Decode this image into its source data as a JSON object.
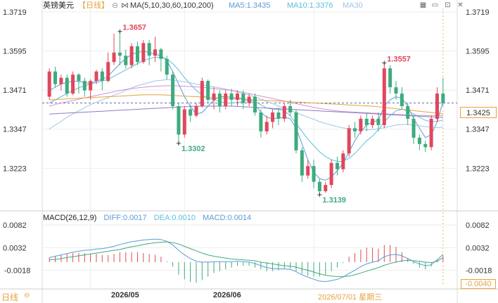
{
  "header": {
    "symbol": "英镑美元",
    "period": "【日线】",
    "ma_title": "MA(5,10,30,60,100,200)",
    "ma5": "MA5:1.3435",
    "ma10": "MA10:1.3376",
    "ma30": "MA30"
  },
  "macd_header": {
    "title": "MACD(26,12,9)",
    "diff": "DIFF:0.0017",
    "dea": "DEA:0.0010",
    "macd": "MACD:0.0014"
  },
  "footer": {
    "period_label": "日线",
    "date1": "2026/05",
    "date2": "2026/06",
    "cursor_date": "2026/07/01 星期三"
  },
  "price_tag": "1.3425",
  "macd_tag": "-0.0040",
  "colors": {
    "up": "#e0475b",
    "down": "#3dab7e",
    "accent": "#e6a23c",
    "ma5": "#5b9bd5",
    "ma10": "#5bc0de",
    "ma30": "#9fc5e8",
    "ma60": "#d68fd6",
    "ma100": "#e6a23c",
    "ma200": "#8e7cc3"
  },
  "chart_data": [
    {
      "type": "candlestick",
      "title": "英镑美元",
      "y_ticks": [
        1.3719,
        1.3595,
        1.3471,
        1.3347,
        1.3223
      ],
      "ylim": [
        1.311,
        1.373
      ],
      "x_tick_labels": [
        "2026/05",
        "2026/06"
      ],
      "annotations": [
        {
          "label": "1.3657",
          "type": "high"
        },
        {
          "label": "1.3302",
          "type": "low"
        },
        {
          "label": "1.3557",
          "type": "high"
        },
        {
          "label": "1.3139",
          "type": "low"
        }
      ],
      "candles": [
        [
          1.345,
          1.353,
          1.354,
          1.344
        ],
        [
          1.353,
          1.349,
          1.3545,
          1.348
        ],
        [
          1.349,
          1.351,
          1.352,
          1.347
        ],
        [
          1.351,
          1.346,
          1.352,
          1.345
        ],
        [
          1.346,
          1.352,
          1.353,
          1.3455
        ],
        [
          1.352,
          1.35,
          1.3525,
          1.346
        ],
        [
          1.35,
          1.347,
          1.351,
          1.345
        ],
        [
          1.347,
          1.35,
          1.3505,
          1.344
        ],
        [
          1.35,
          1.353,
          1.3535,
          1.349
        ],
        [
          1.353,
          1.35,
          1.354,
          1.347
        ],
        [
          1.35,
          1.356,
          1.359,
          1.3495
        ],
        [
          1.356,
          1.359,
          1.365,
          1.355
        ],
        [
          1.359,
          1.358,
          1.3657,
          1.355
        ],
        [
          1.358,
          1.355,
          1.36,
          1.354
        ],
        [
          1.355,
          1.361,
          1.362,
          1.354
        ],
        [
          1.361,
          1.356,
          1.3625,
          1.355
        ],
        [
          1.356,
          1.362,
          1.363,
          1.3555
        ],
        [
          1.362,
          1.358,
          1.363,
          1.355
        ],
        [
          1.358,
          1.36,
          1.364,
          1.356
        ],
        [
          1.36,
          1.357,
          1.3605,
          1.353
        ],
        [
          1.357,
          1.352,
          1.358,
          1.3505
        ],
        [
          1.352,
          1.342,
          1.353,
          1.341
        ],
        [
          1.342,
          1.333,
          1.343,
          1.3302
        ],
        [
          1.333,
          1.341,
          1.342,
          1.332
        ],
        [
          1.341,
          1.339,
          1.3425,
          1.337
        ],
        [
          1.339,
          1.342,
          1.343,
          1.3385
        ],
        [
          1.342,
          1.35,
          1.351,
          1.3415
        ],
        [
          1.35,
          1.344,
          1.3505,
          1.343
        ],
        [
          1.344,
          1.346,
          1.348,
          1.341
        ],
        [
          1.346,
          1.342,
          1.347,
          1.34
        ],
        [
          1.342,
          1.346,
          1.347,
          1.341
        ],
        [
          1.346,
          1.344,
          1.3475,
          1.342
        ],
        [
          1.344,
          1.346,
          1.347,
          1.342
        ],
        [
          1.346,
          1.343,
          1.347,
          1.341
        ],
        [
          1.343,
          1.345,
          1.346,
          1.342
        ],
        [
          1.345,
          1.34,
          1.346,
          1.339
        ],
        [
          1.34,
          1.334,
          1.341,
          1.332
        ],
        [
          1.334,
          1.337,
          1.339,
          1.333
        ],
        [
          1.337,
          1.34,
          1.341,
          1.335
        ],
        [
          1.34,
          1.338,
          1.3415,
          1.336
        ],
        [
          1.338,
          1.342,
          1.343,
          1.337
        ],
        [
          1.342,
          1.34,
          1.344,
          1.339
        ],
        [
          1.34,
          1.328,
          1.341,
          1.327
        ],
        [
          1.328,
          1.32,
          1.329,
          1.318
        ],
        [
          1.32,
          1.323,
          1.325,
          1.319
        ],
        [
          1.323,
          1.318,
          1.325,
          1.316
        ],
        [
          1.318,
          1.315,
          1.319,
          1.3139
        ],
        [
          1.315,
          1.317,
          1.318,
          1.3145
        ],
        [
          1.317,
          1.324,
          1.325,
          1.316
        ],
        [
          1.324,
          1.322,
          1.326,
          1.32
        ],
        [
          1.322,
          1.327,
          1.328,
          1.321
        ],
        [
          1.327,
          1.335,
          1.336,
          1.326
        ],
        [
          1.335,
          1.334,
          1.337,
          1.332
        ],
        [
          1.334,
          1.338,
          1.339,
          1.333
        ],
        [
          1.338,
          1.336,
          1.34,
          1.334
        ],
        [
          1.336,
          1.338,
          1.339,
          1.335
        ],
        [
          1.338,
          1.336,
          1.34,
          1.334
        ],
        [
          1.336,
          1.354,
          1.3557,
          1.335
        ],
        [
          1.354,
          1.348,
          1.355,
          1.346
        ],
        [
          1.348,
          1.346,
          1.35,
          1.344
        ],
        [
          1.346,
          1.342,
          1.348,
          1.341
        ],
        [
          1.342,
          1.338,
          1.343,
          1.336
        ],
        [
          1.338,
          1.332,
          1.339,
          1.33
        ],
        [
          1.332,
          1.33,
          1.333,
          1.328
        ],
        [
          1.33,
          1.329,
          1.331,
          1.3275
        ],
        [
          1.329,
          1.338,
          1.339,
          1.328
        ],
        [
          1.338,
          1.346,
          1.348,
          1.337
        ],
        [
          1.346,
          1.343,
          1.351,
          1.342
        ]
      ],
      "ma_lines": {
        "ma5": [
          1.347,
          1.348,
          1.349,
          1.3495,
          1.35,
          1.3498,
          1.3495,
          1.3492,
          1.35,
          1.3505,
          1.3515,
          1.3535,
          1.3555,
          1.357,
          1.3585,
          1.359,
          1.3595,
          1.359,
          1.3585,
          1.358,
          1.3565,
          1.353,
          1.349,
          1.345,
          1.342,
          1.3395,
          1.34,
          1.342,
          1.344,
          1.345,
          1.345,
          1.3448,
          1.3446,
          1.3444,
          1.344,
          1.3425,
          1.34,
          1.3385,
          1.338,
          1.3382,
          1.3385,
          1.338,
          1.335,
          1.33,
          1.325,
          1.321,
          1.319,
          1.3185,
          1.3195,
          1.3215,
          1.324,
          1.3275,
          1.331,
          1.334,
          1.336,
          1.337,
          1.3375,
          1.342,
          1.344,
          1.345,
          1.3445,
          1.342,
          1.338,
          1.335,
          1.332,
          1.333,
          1.337,
          1.3435
        ],
        "ma10": [
          1.343,
          1.344,
          1.345,
          1.346,
          1.347,
          1.3478,
          1.3485,
          1.349,
          1.3495,
          1.35,
          1.3505,
          1.3515,
          1.3525,
          1.3535,
          1.3545,
          1.3555,
          1.3565,
          1.357,
          1.3575,
          1.3575,
          1.357,
          1.3555,
          1.3535,
          1.351,
          1.349,
          1.347,
          1.3455,
          1.3445,
          1.344,
          1.3435,
          1.343,
          1.343,
          1.3432,
          1.3435,
          1.344,
          1.3436,
          1.3424,
          1.3414,
          1.341,
          1.341,
          1.3405,
          1.339,
          1.3365,
          1.334,
          1.3315,
          1.3295,
          1.3275,
          1.326,
          1.325,
          1.3245,
          1.3245,
          1.3255,
          1.327,
          1.329,
          1.331,
          1.3325,
          1.3345,
          1.337,
          1.339,
          1.3405,
          1.341,
          1.3405,
          1.3395,
          1.3385,
          1.3375,
          1.337,
          1.3372,
          1.3376
        ],
        "ma30": [
          1.3347,
          1.336,
          1.3372,
          1.3385,
          1.3395,
          1.3405,
          1.3415,
          1.3425,
          1.3433,
          1.344,
          1.3447,
          1.3455,
          1.3462,
          1.347,
          1.3478,
          1.3485,
          1.349,
          1.3495,
          1.35,
          1.3502,
          1.3504,
          1.3503,
          1.35,
          1.3497,
          1.3494,
          1.349,
          1.3487,
          1.3484,
          1.3481,
          1.3478,
          1.3474,
          1.347,
          1.3465,
          1.346,
          1.3455,
          1.345,
          1.3443,
          1.3435,
          1.3428,
          1.342,
          1.3414,
          1.3407,
          1.34,
          1.3392,
          1.3385,
          1.3378,
          1.3371,
          1.3365,
          1.336,
          1.3355,
          1.3351,
          1.3348,
          1.3346,
          1.3345,
          1.3345,
          1.3346,
          1.3348,
          1.3352,
          1.3356,
          1.336,
          1.3362,
          1.3362,
          1.336,
          1.3358,
          1.3355,
          1.3353,
          1.3352,
          1.3353
        ],
        "ma60": [
          1.342,
          1.3425,
          1.343,
          1.3434,
          1.3438,
          1.3442,
          1.3446,
          1.345,
          1.3454,
          1.3458,
          1.3462,
          1.3466,
          1.347,
          1.3473,
          1.3476,
          1.3478,
          1.348,
          1.3482,
          1.3483,
          1.3484,
          1.3485,
          1.3485,
          1.3484,
          1.3483,
          1.3482,
          1.3481,
          1.348,
          1.3478,
          1.3476,
          1.3474,
          1.3472,
          1.347,
          1.3467,
          1.3464,
          1.346,
          1.3456,
          1.3452,
          1.3448,
          1.3444,
          1.344,
          1.3436,
          1.3432,
          1.3428,
          1.3424,
          1.342,
          1.3416,
          1.3413,
          1.341,
          1.3407,
          1.3405,
          1.3403,
          1.3402,
          1.3401,
          1.34,
          1.3399,
          1.3398,
          1.3397,
          1.3396,
          1.3395,
          1.3394,
          1.3393,
          1.3392,
          1.3391,
          1.3391,
          1.339,
          1.339,
          1.339,
          1.339
        ],
        "ma100": [
          1.344,
          1.3441,
          1.3442,
          1.3443,
          1.3444,
          1.3445,
          1.3446,
          1.3447,
          1.3448,
          1.3449,
          1.345,
          1.3451,
          1.3452,
          1.3453,
          1.3454,
          1.3455,
          1.3456,
          1.3456,
          1.3456,
          1.3456,
          1.3455,
          1.3454,
          1.3453,
          1.3452,
          1.3451,
          1.345,
          1.3449,
          1.3448,
          1.3447,
          1.3446,
          1.3445,
          1.3444,
          1.3443,
          1.3442,
          1.3441,
          1.344,
          1.3439,
          1.3438,
          1.3437,
          1.3436,
          1.3435,
          1.3434,
          1.3433,
          1.3432,
          1.3431,
          1.343,
          1.3429,
          1.3428,
          1.3427,
          1.3426,
          1.3425,
          1.3424,
          1.3423,
          1.3422,
          1.3421,
          1.342,
          1.3418,
          1.3416,
          1.3414,
          1.3412,
          1.341,
          1.3408,
          1.3406,
          1.3404,
          1.3402,
          1.34,
          1.3398,
          1.3396
        ],
        "ma200": [
          1.3395,
          1.3396,
          1.3397,
          1.3398,
          1.3399,
          1.34,
          1.3401,
          1.3402,
          1.3403,
          1.3404,
          1.3405,
          1.3406,
          1.3407,
          1.3408,
          1.3409,
          1.341,
          1.3411,
          1.3412,
          1.3413,
          1.3414,
          1.3415,
          1.3416,
          1.3417,
          1.3418,
          1.3419,
          1.342,
          1.342,
          1.342,
          1.342,
          1.342,
          1.342,
          1.342,
          1.3419,
          1.3418,
          1.3417,
          1.3416,
          1.3415,
          1.3414,
          1.3413,
          1.3412,
          1.3411,
          1.341,
          1.3409,
          1.3408,
          1.3407,
          1.3406,
          1.3405,
          1.3404,
          1.3403,
          1.3402,
          1.3401,
          1.34,
          1.3399,
          1.3398,
          1.3397,
          1.3396,
          1.3395,
          1.3394,
          1.3393,
          1.3392,
          1.3391,
          1.339,
          1.3389,
          1.3388,
          1.3387,
          1.3386,
          1.3385,
          1.3384
        ]
      }
    },
    {
      "type": "macd",
      "title": "MACD(26,12,9)",
      "y_ticks": [
        0.0082,
        0.0032,
        -0.0018
      ],
      "ylim": [
        -0.005,
        0.009
      ],
      "diff": [
        0.001,
        0.0013,
        0.0016,
        0.0019,
        0.0022,
        0.0024,
        0.0026,
        0.0027,
        0.0029,
        0.003,
        0.0032,
        0.0035,
        0.0039,
        0.0042,
        0.0045,
        0.0047,
        0.0049,
        0.005,
        0.0051,
        0.005,
        0.0046,
        0.0038,
        0.0026,
        0.0016,
        0.0008,
        0.0002,
        0.0,
        0.0,
        0.0001,
        0.0001,
        0.0001,
        0.0001,
        0.0002,
        0.0001,
        0.0,
        -0.0003,
        -0.0008,
        -0.0012,
        -0.0014,
        -0.0015,
        -0.0015,
        -0.0016,
        -0.0021,
        -0.0028,
        -0.0033,
        -0.0038,
        -0.0042,
        -0.0043,
        -0.0041,
        -0.0038,
        -0.0033,
        -0.0025,
        -0.0018,
        -0.001,
        -0.0004,
        0.0,
        0.0003,
        0.0012,
        0.0016,
        0.0017,
        0.0014,
        0.0008,
        0.0001,
        -0.0004,
        -0.0008,
        -0.0006,
        0.0005,
        0.0017
      ],
      "dea": [
        0.0005,
        0.0006,
        0.0008,
        0.001,
        0.0012,
        0.0014,
        0.0016,
        0.0018,
        0.002,
        0.0022,
        0.0024,
        0.0026,
        0.0028,
        0.0031,
        0.0034,
        0.0036,
        0.0039,
        0.0041,
        0.0043,
        0.0044,
        0.0045,
        0.0043,
        0.004,
        0.0035,
        0.003,
        0.0025,
        0.002,
        0.0016,
        0.0013,
        0.0011,
        0.0009,
        0.0007,
        0.0006,
        0.0005,
        0.0004,
        0.0003,
        0.0,
        -0.0002,
        -0.0004,
        -0.0006,
        -0.0008,
        -0.0009,
        -0.0011,
        -0.0015,
        -0.0018,
        -0.0022,
        -0.0026,
        -0.0029,
        -0.0031,
        -0.0032,
        -0.0032,
        -0.0031,
        -0.0028,
        -0.0024,
        -0.002,
        -0.0016,
        -0.0012,
        -0.0007,
        -0.0003,
        0.0,
        0.0003,
        0.0004,
        0.0003,
        0.0002,
        0.0,
        -0.0001,
        0.0002,
        0.001
      ],
      "hist": [
        0.001,
        0.0014,
        0.0016,
        0.0018,
        0.002,
        0.002,
        0.002,
        0.0018,
        0.0018,
        0.0016,
        0.0016,
        0.0018,
        0.0022,
        0.0022,
        0.0022,
        0.0022,
        0.002,
        0.0018,
        0.0016,
        0.0012,
        0.0002,
        -0.001,
        -0.0028,
        -0.0038,
        -0.0044,
        -0.0046,
        -0.004,
        -0.0032,
        -0.0024,
        -0.002,
        -0.0016,
        -0.0012,
        -0.0008,
        -0.0008,
        -0.0008,
        -0.0012,
        -0.0016,
        -0.002,
        -0.002,
        -0.0018,
        -0.0014,
        -0.0014,
        -0.002,
        -0.0026,
        -0.003,
        -0.0032,
        -0.0032,
        -0.0028,
        -0.002,
        -0.0012,
        -0.0002,
        0.0012,
        0.002,
        0.0028,
        0.0032,
        0.0032,
        0.003,
        0.0038,
        0.0038,
        0.0034,
        0.0022,
        0.0008,
        -0.0004,
        -0.0012,
        -0.0016,
        -0.001,
        0.0006,
        0.0014
      ]
    }
  ]
}
